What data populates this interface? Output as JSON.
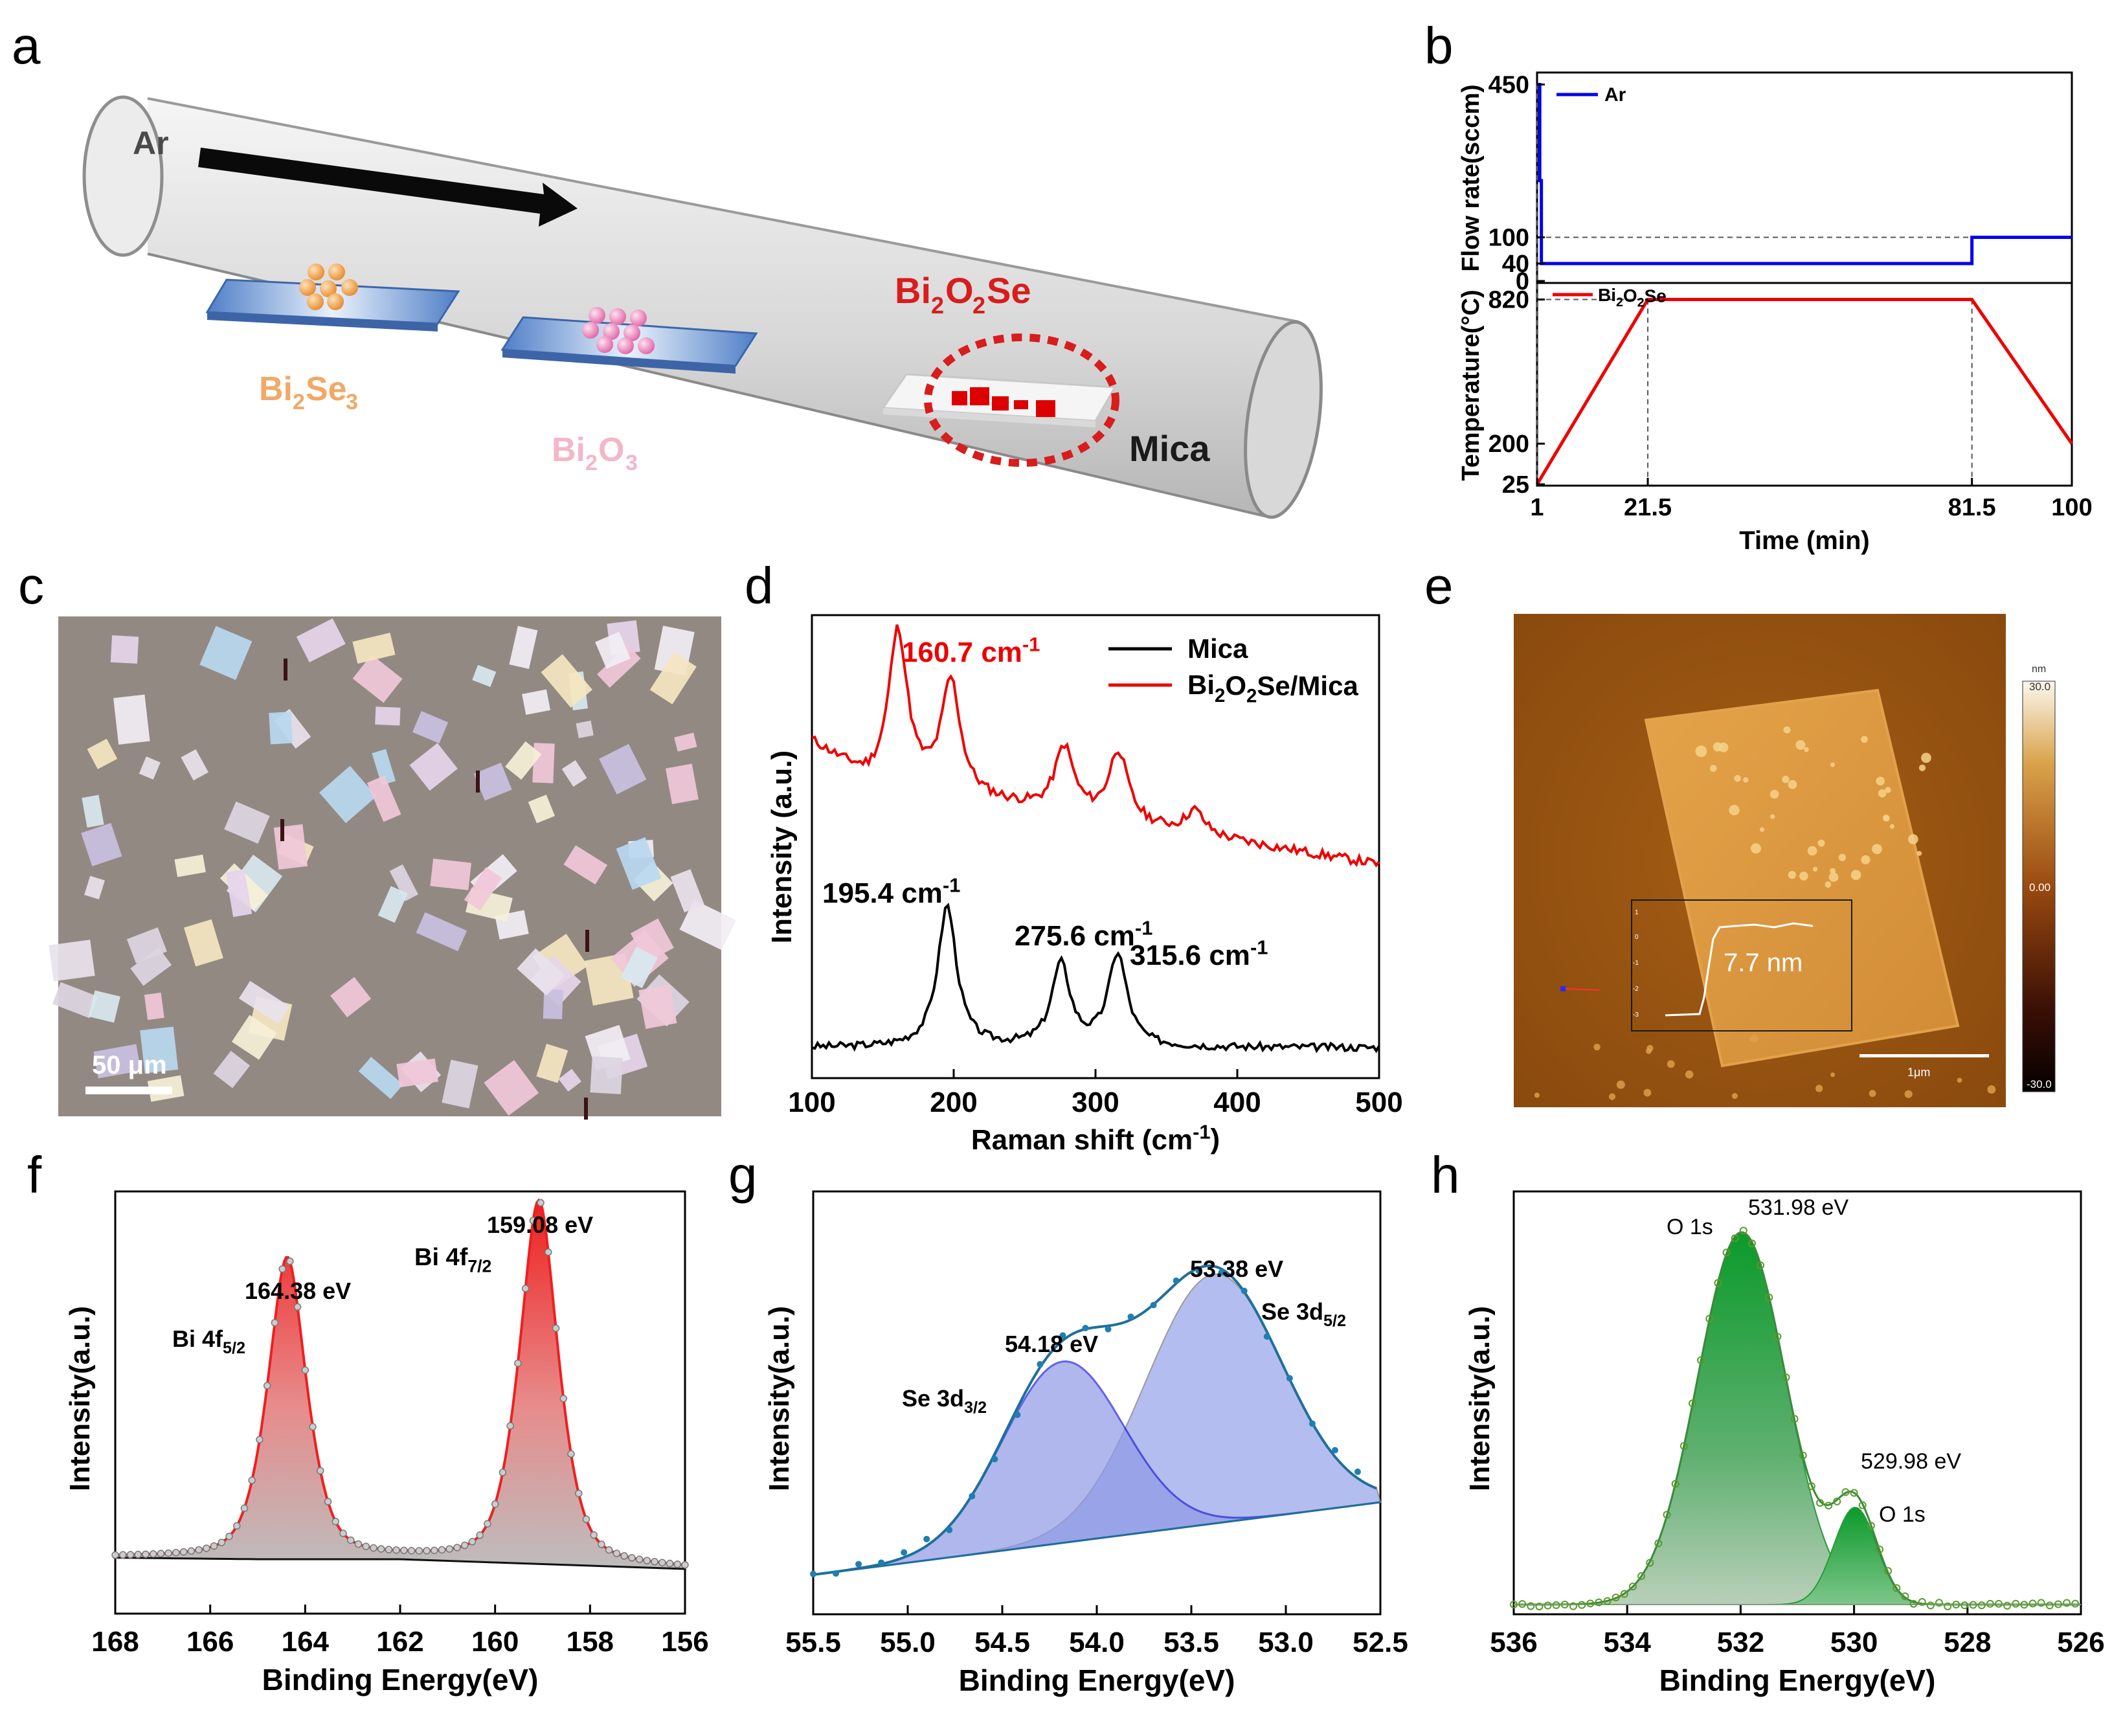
{
  "panels": [
    {
      "label": "a"
    },
    {
      "label": "b"
    },
    {
      "label": "c"
    },
    {
      "label": "d"
    },
    {
      "label": "e"
    },
    {
      "label": "f"
    },
    {
      "label": "g"
    },
    {
      "label": "h"
    }
  ],
  "schematic": {
    "gas": "Ar",
    "source1": {
      "base": "Bi",
      "sub1": "2",
      "mid": "Se",
      "sub2": "3"
    },
    "source2": {
      "base": "Bi",
      "sub1": "2",
      "mid": "O",
      "sub2": "3"
    },
    "product": {
      "p1": "Bi",
      "s1": "2",
      "p2": "O",
      "s2": "2",
      "p3": "Se"
    },
    "substrate": "Mica"
  },
  "optical": {
    "scalebar": "50 μm"
  },
  "afm": {
    "scalebar": "1μm",
    "height_step": "7.7 nm",
    "colorbar_unit": "nm",
    "colorbar_ticks": [
      "30.0",
      "0.00",
      "-30.0"
    ],
    "inset_ticks": [
      "1",
      "0",
      "-1",
      "-2",
      "-3"
    ]
  },
  "chart_data": [
    {
      "id": "b",
      "type": "line",
      "xlabel": "Time (min)",
      "xticks": [
        "1",
        "21.5",
        "81.5",
        "100"
      ],
      "xlim": [
        1,
        100
      ],
      "top": {
        "ylabel": "Flow rate(sccm)",
        "yticks": [
          "450",
          "100",
          "40",
          "0"
        ],
        "legend": "Ar",
        "color": "#0000ee",
        "x": [
          1,
          1.5,
          1.5,
          1.8,
          1.8,
          81.5,
          81.5,
          100
        ],
        "y": [
          450,
          450,
          230,
          230,
          40,
          40,
          100,
          100
        ]
      },
      "bottom": {
        "ylabel": "Temperature(°C)",
        "yticks": [
          "820",
          "200",
          "25"
        ],
        "legend": {
          "base": "Bi",
          "s1": "2",
          "mid": "O",
          "s2": "2",
          "end": "Se"
        },
        "color": "#ee0000",
        "x": [
          1,
          21.5,
          81.5,
          100
        ],
        "y": [
          25,
          820,
          820,
          200
        ]
      }
    },
    {
      "id": "d",
      "type": "line",
      "xlabel": "Raman shift (cm-1)",
      "xlabel_parts": [
        "Raman shift (cm",
        "-1",
        ")"
      ],
      "ylabel": "Intensity (a.u.)",
      "xticks": [
        "100",
        "200",
        "300",
        "400",
        "500"
      ],
      "xlim": [
        100,
        500
      ],
      "legend": {
        "mica": "Mica",
        "bos": {
          "base": "Bi",
          "s1": "2",
          "mid": "O",
          "s2": "2",
          "end": "Se/Mica"
        }
      },
      "series": [
        {
          "name": "Mica",
          "color": "#000000",
          "peaks": [
            [
              195.4,
              0.95
            ],
            [
              275.6,
              0.55
            ],
            [
              315.6,
              0.62
            ]
          ],
          "annotations": [
            {
              "value": "195.4",
              "unit": "cm",
              "exp": "-1"
            },
            {
              "value": "275.6",
              "unit": "cm",
              "exp": "-1"
            },
            {
              "value": "315.6",
              "unit": "cm",
              "exp": "-1"
            }
          ]
        },
        {
          "name": "Bi2O2Se/Mica",
          "color": "#ee0000",
          "peaks": [
            [
              160.7,
              1.0
            ],
            [
              198,
              0.72
            ],
            [
              278,
              0.42
            ],
            [
              316,
              0.45
            ],
            [
              370,
              0.15
            ]
          ],
          "annotations": [
            {
              "value": "160.7",
              "unit": "cm",
              "exp": "-1"
            }
          ]
        }
      ]
    },
    {
      "id": "f",
      "type": "area",
      "xlabel": "Binding Energy(eV)",
      "ylabel": "Intensity(a.u.)",
      "xticks": [
        "168",
        "166",
        "164",
        "162",
        "160",
        "158",
        "156"
      ],
      "xlim": [
        168,
        156
      ],
      "peaks": [
        {
          "center": 164.38,
          "label": "164.38 eV",
          "name": {
            "main": "Bi 4f",
            "sub": "5/2"
          }
        },
        {
          "center": 159.08,
          "label": "159.08 eV",
          "name": {
            "main": "Bi 4f",
            "sub": "7/2"
          }
        }
      ]
    },
    {
      "id": "g",
      "type": "area",
      "xlabel": "Binding Energy(eV)",
      "ylabel": "Intensity(a.u.)",
      "xticks": [
        "55.5",
        "55.0",
        "54.5",
        "54.0",
        "53.5",
        "53.0",
        "52.5"
      ],
      "xlim": [
        55.5,
        52.5
      ],
      "peaks": [
        {
          "center": 54.18,
          "label": "54.18 eV",
          "name": {
            "main": "Se 3d",
            "sub": "3/2"
          }
        },
        {
          "center": 53.38,
          "label": "53.38 eV",
          "name": {
            "main": "Se 3d",
            "sub": "5/2"
          }
        }
      ]
    },
    {
      "id": "h",
      "type": "area",
      "xlabel": "Binding Energy(eV)",
      "ylabel": "Intensity(a.u.)",
      "xticks": [
        "536",
        "534",
        "532",
        "530",
        "528",
        "526"
      ],
      "xlim": [
        536,
        526
      ],
      "peaks": [
        {
          "center": 531.98,
          "label": "531.98 eV",
          "name": {
            "main": "O 1s",
            "sub": ""
          }
        },
        {
          "center": 529.98,
          "label": "529.98 eV",
          "name": {
            "main": "O 1s",
            "sub": ""
          }
        }
      ]
    }
  ]
}
